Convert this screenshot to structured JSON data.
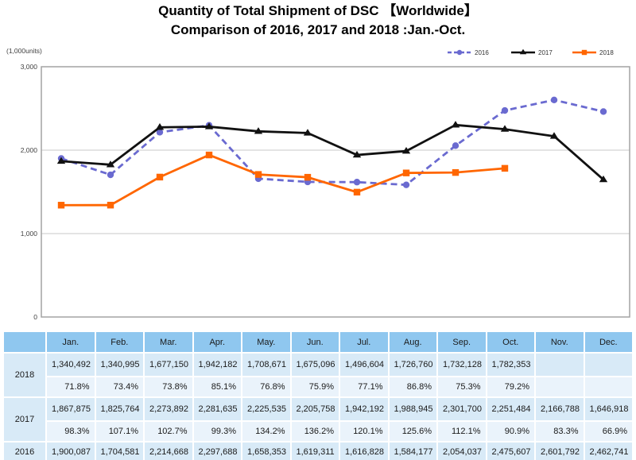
{
  "title": {
    "line1": "Quantity of Total Shipment of DSC 【Worldwide】",
    "line2": "Comparison of 2016, 2017 and 2018 :Jan.-Oct."
  },
  "chart_data": {
    "type": "line",
    "title": "Quantity of Total Shipment of DSC 【Worldwide】",
    "subtitle": "Comparison of 2016, 2017 and 2018 :Jan.-Oct.",
    "unit_label": "(1,000units)",
    "ylim": [
      0,
      3000
    ],
    "yticks": [
      0,
      1000,
      2000,
      3000
    ],
    "ytick_labels": [
      "0",
      "1,000",
      "2,000",
      "3,000"
    ],
    "grid": true,
    "legend_position": "top-right",
    "categories": [
      "Jan.",
      "Feb.",
      "Mar.",
      "Apr.",
      "May.",
      "Jun.",
      "Jul.",
      "Aug.",
      "Sep.",
      "Oct.",
      "Nov.",
      "Dec."
    ],
    "series": [
      {
        "name": "2016",
        "color": "#6A6AD0",
        "style": "dashed",
        "marker": "circle",
        "values": [
          1900.087,
          1704.581,
          2214.668,
          2297.688,
          1658.353,
          1619.311,
          1616.828,
          1584.177,
          2054.037,
          2475.607,
          2601.792,
          2462.741
        ]
      },
      {
        "name": "2017",
        "color": "#111111",
        "style": "solid",
        "marker": "triangle",
        "values": [
          1867.875,
          1825.764,
          2273.892,
          2281.635,
          2225.535,
          2205.758,
          1942.192,
          1988.945,
          2301.7,
          2251.484,
          2166.788,
          1646.918
        ]
      },
      {
        "name": "2018",
        "color": "#FF6600",
        "style": "solid",
        "marker": "square",
        "values": [
          1340.492,
          1340.995,
          1677.15,
          1942.182,
          1708.671,
          1675.096,
          1496.604,
          1726.76,
          1732.128,
          1782.353,
          null,
          null
        ]
      }
    ]
  },
  "table": {
    "columns": [
      "",
      "Jan.",
      "Feb.",
      "Mar.",
      "Apr.",
      "May.",
      "Jun.",
      "Jul.",
      "Aug.",
      "Sep.",
      "Oct.",
      "Nov.",
      "Dec."
    ],
    "rows": [
      {
        "year": "2018",
        "values": [
          "1,340,492",
          "1,340,995",
          "1,677,150",
          "1,942,182",
          "1,708,671",
          "1,675,096",
          "1,496,604",
          "1,726,760",
          "1,732,128",
          "1,782,353",
          "",
          ""
        ],
        "pct": [
          "71.8%",
          "73.4%",
          "73.8%",
          "85.1%",
          "76.8%",
          "75.9%",
          "77.1%",
          "86.8%",
          "75.3%",
          "79.2%",
          "",
          ""
        ]
      },
      {
        "year": "2017",
        "values": [
          "1,867,875",
          "1,825,764",
          "2,273,892",
          "2,281,635",
          "2,225,535",
          "2,205,758",
          "1,942,192",
          "1,988,945",
          "2,301,700",
          "2,251,484",
          "2,166,788",
          "1,646,918"
        ],
        "pct": [
          "98.3%",
          "107.1%",
          "102.7%",
          "99.3%",
          "134.2%",
          "136.2%",
          "120.1%",
          "125.6%",
          "112.1%",
          "90.9%",
          "83.3%",
          "66.9%"
        ]
      },
      {
        "year": "2016",
        "values": [
          "1,900,087",
          "1,704,581",
          "2,214,668",
          "2,297,688",
          "1,658,353",
          "1,619,311",
          "1,616,828",
          "1,584,177",
          "2,054,037",
          "2,475,607",
          "2,601,792",
          "2,462,741"
        ]
      }
    ]
  },
  "colors": {
    "grid": "#C8C8C8",
    "frame": "#A3A3A3",
    "tick_text": "#404040",
    "header_bg": "#8FC7EF",
    "value_row_bg": "#D8EAF7",
    "pct_row_bg": "#EAF3FB"
  }
}
